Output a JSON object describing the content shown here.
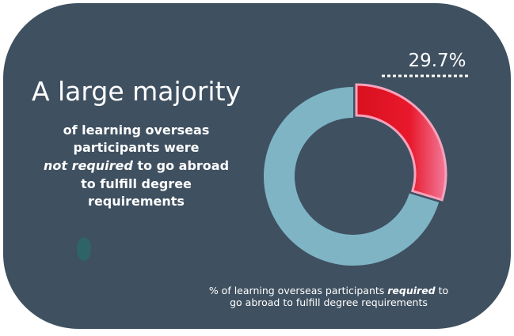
{
  "chart_data": {
    "type": "donut",
    "title": "A large majority",
    "subtitle": [
      "of learning overseas",
      "participants were",
      "not required",
      " to go abroad",
      "to fulfill degree",
      "requirements"
    ],
    "caption": [
      "% of learning overseas participants ",
      "required",
      " to",
      "go abroad to fulfill degree requirements"
    ],
    "values": [
      29.7,
      70.3
    ],
    "value_labels": [
      "29.7%",
      null
    ],
    "colors": [
      "#e8192c",
      "#7fb4c5"
    ]
  }
}
